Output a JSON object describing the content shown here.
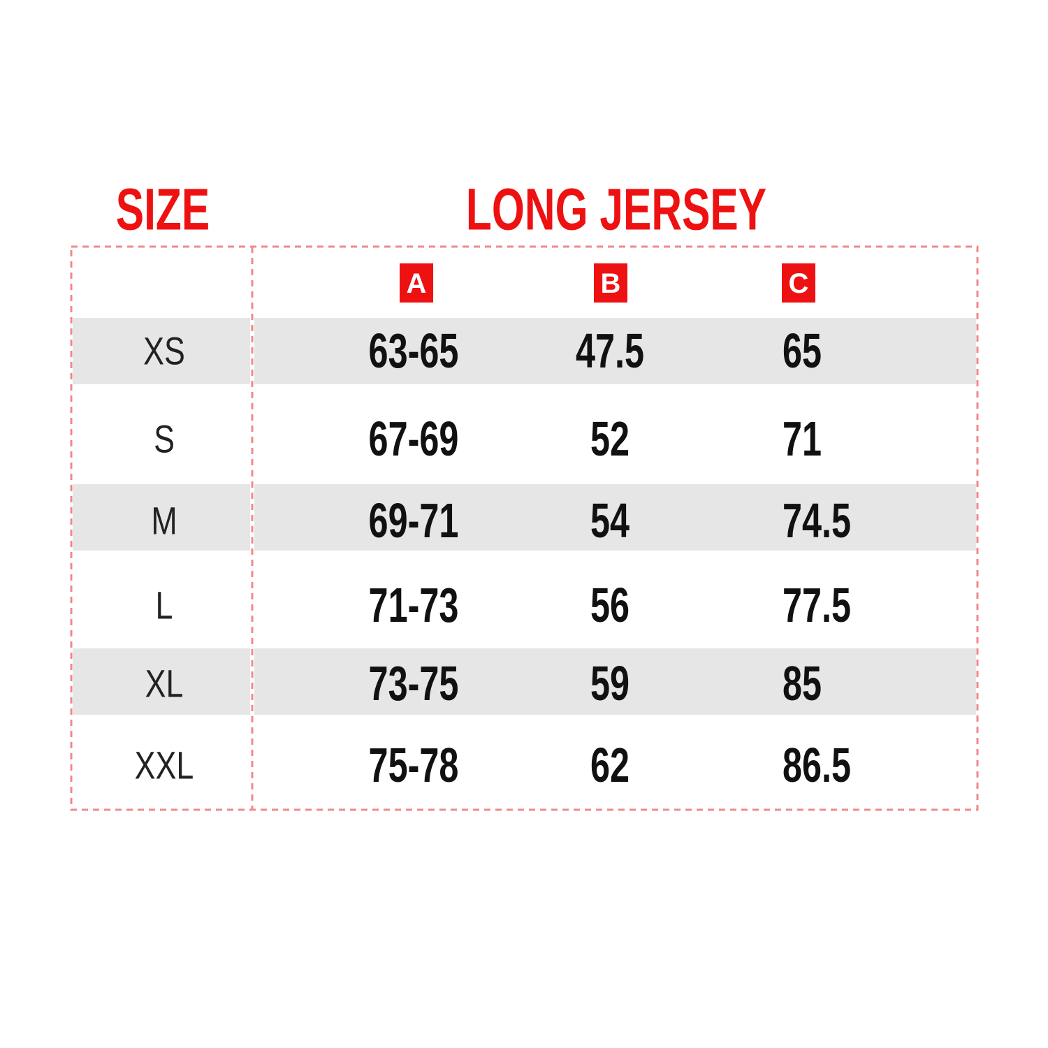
{
  "header": {
    "size_title": "SIZE",
    "table_title": "LONG JERSEY"
  },
  "table": {
    "columns": [
      "A",
      "B",
      "C"
    ],
    "rows": [
      [
        "XS",
        "63-65",
        "47.5",
        "65"
      ],
      [
        "S",
        "67-69",
        "52",
        "71"
      ],
      [
        "M",
        "69-71",
        "54",
        "74.5"
      ],
      [
        "L",
        "71-73",
        "56",
        "77.5"
      ],
      [
        "XL",
        "73-75",
        "59",
        "85"
      ],
      [
        "XXL",
        "75-78",
        "62",
        "86.5"
      ]
    ]
  }
}
